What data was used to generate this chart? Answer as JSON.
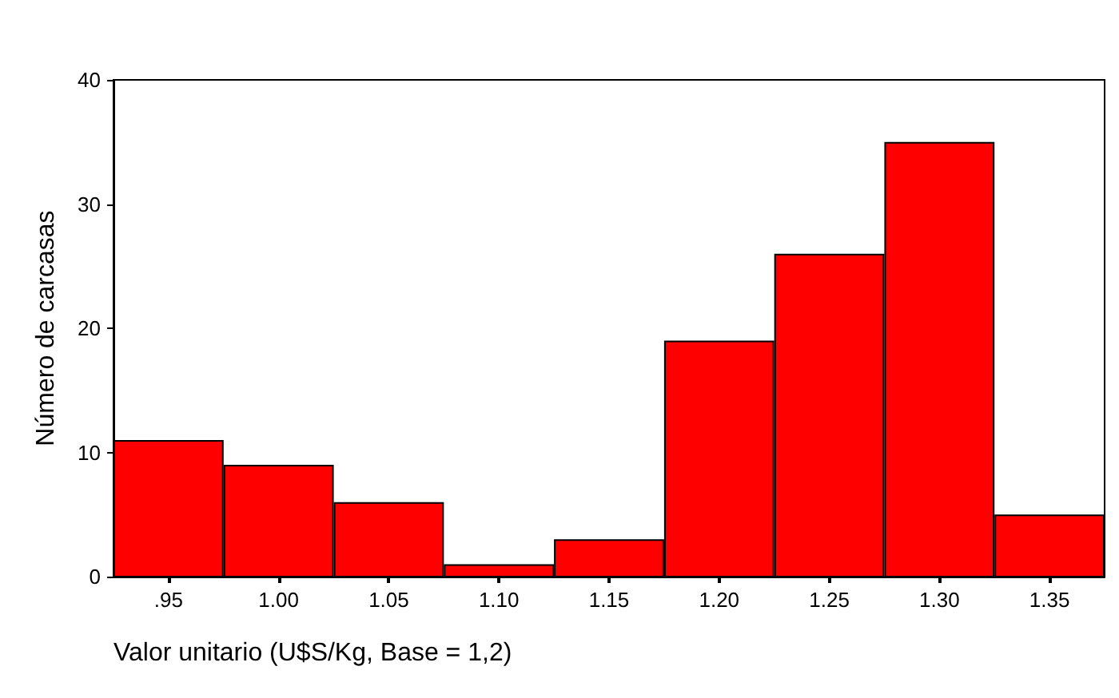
{
  "chart_data": {
    "type": "histogram",
    "xlabel": "Valor unitario (U$S/Kg, Base = 1,2)",
    "ylabel": "Número de carcasas",
    "bins": [
      0.925,
      0.975,
      1.025,
      1.075,
      1.125,
      1.175,
      1.225,
      1.275,
      1.325,
      1.375
    ],
    "values": [
      11,
      9,
      6,
      1,
      3,
      19,
      26,
      35,
      5
    ],
    "color": "#ff0000",
    "xlim": [
      0.925,
      1.375
    ],
    "xticks": [
      {
        "value": 0.95,
        "label": ".95"
      },
      {
        "value": 1.0,
        "label": "1.00"
      },
      {
        "value": 1.05,
        "label": "1.05"
      },
      {
        "value": 1.1,
        "label": "1.10"
      },
      {
        "value": 1.15,
        "label": "1.15"
      },
      {
        "value": 1.2,
        "label": "1.20"
      },
      {
        "value": 1.25,
        "label": "1.25"
      },
      {
        "value": 1.3,
        "label": "1.30"
      },
      {
        "value": 1.35,
        "label": "1.35"
      }
    ],
    "ylim": [
      0,
      40
    ],
    "yticks": [
      0,
      10,
      20,
      30,
      40
    ],
    "grid": false
  }
}
